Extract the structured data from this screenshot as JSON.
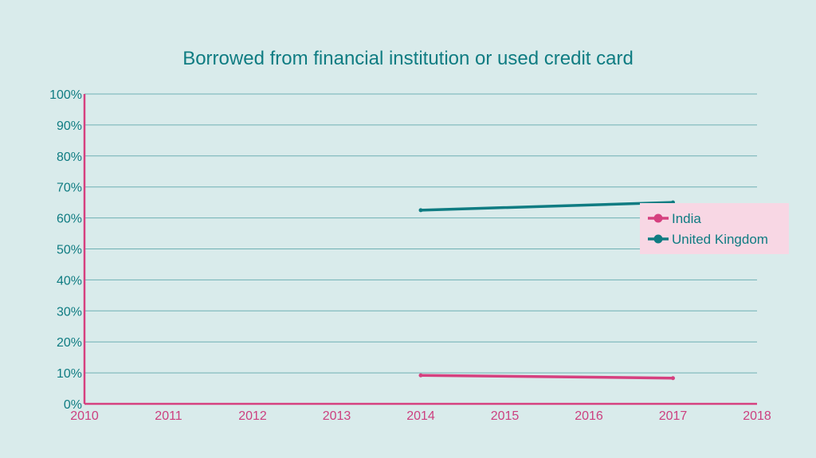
{
  "chart_data": {
    "type": "line",
    "title": "Borrowed from financial institution or used credit card",
    "xlabel": "",
    "ylabel": "",
    "x_ticks": [
      "2010",
      "2011",
      "2012",
      "2013",
      "2014",
      "2015",
      "2016",
      "2017",
      "2018"
    ],
    "xlim": [
      2010,
      2018
    ],
    "y_ticks": [
      "0%",
      "10%",
      "20%",
      "30%",
      "40%",
      "50%",
      "60%",
      "70%",
      "80%",
      "90%",
      "100%"
    ],
    "ylim": [
      0,
      100
    ],
    "grid": true,
    "legend_position": "right",
    "series": [
      {
        "name": "India",
        "color": "#d6407f",
        "x": [
          2014,
          2017
        ],
        "y": [
          9.2,
          8.3
        ]
      },
      {
        "name": "United Kingdom",
        "color": "#0f7c82",
        "x": [
          2014,
          2017
        ],
        "y": [
          62.5,
          65.0
        ]
      }
    ]
  },
  "colors": {
    "background": "#d9ebeb",
    "axis": "#d6407f",
    "grid": "#6fb0b4",
    "legend_bg": "#f8d7e4"
  }
}
